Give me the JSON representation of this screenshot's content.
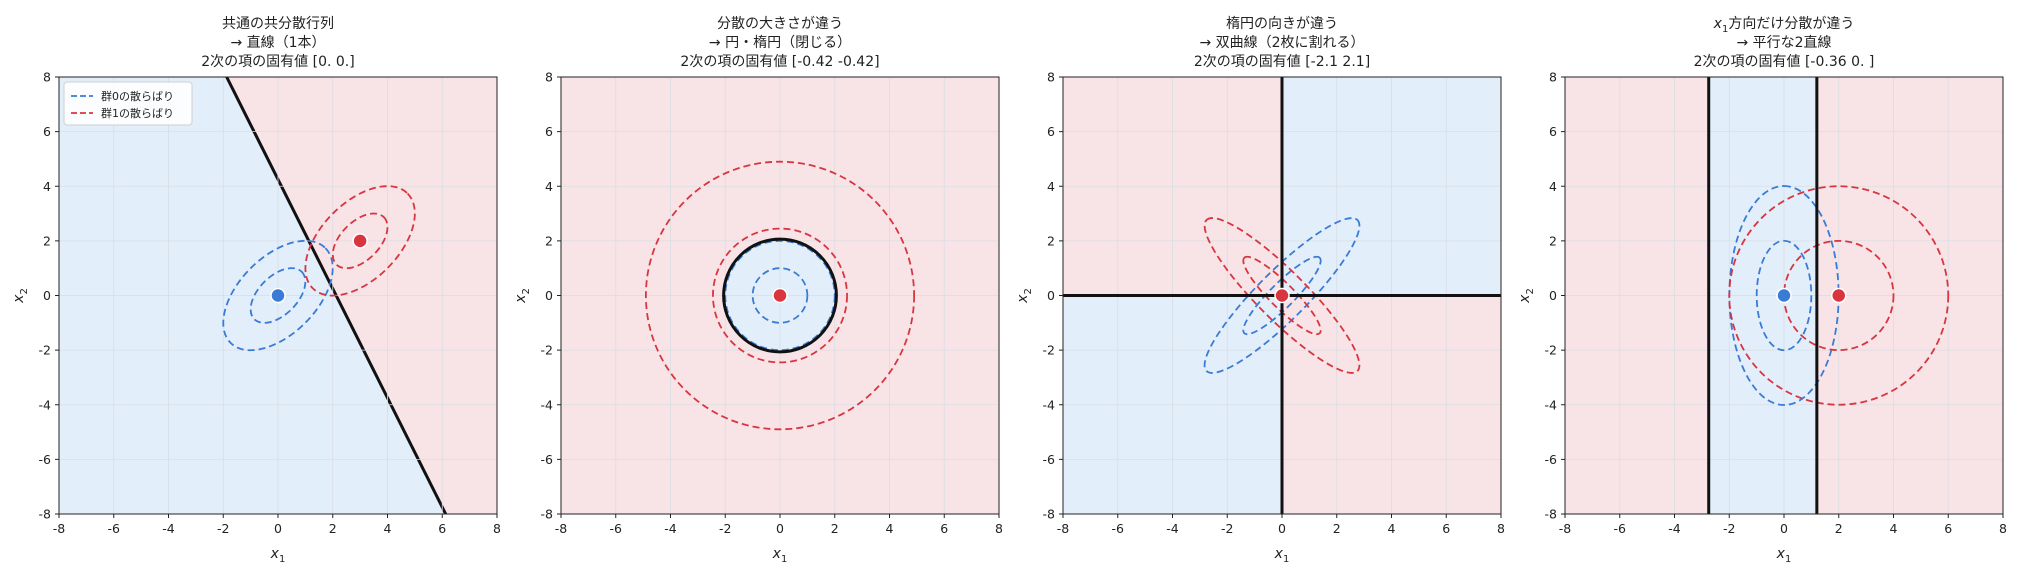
{
  "colors": {
    "group0": "#3a7bd5",
    "group1": "#d9353f",
    "region0": "#e3eefb",
    "region1": "#f8e4e7",
    "boundary": "#111111",
    "grid": "#d9dde3"
  },
  "chart_data": [
    {
      "type": "contour",
      "title_lines": [
        "共通の共分散行列",
        "→ 直線（1本）",
        "2次の項の固有値 [0. 0.]"
      ],
      "xlabel_main": "x",
      "xlabel_sub": "1",
      "ylabel_main": "x",
      "ylabel_sub": "2",
      "xlim": [
        -8,
        8
      ],
      "ylim": [
        -8,
        8
      ],
      "xticks": [
        -8,
        -6,
        -4,
        -2,
        0,
        2,
        4,
        6,
        8
      ],
      "yticks": [
        -8,
        -6,
        -4,
        -2,
        0,
        2,
        4,
        6,
        8
      ],
      "grid": true,
      "legend": {
        "position": "top-left",
        "entries": [
          "群0の散らばり",
          "群1の散らばり"
        ]
      },
      "means": [
        [
          0,
          0
        ],
        [
          3,
          2
        ]
      ],
      "covariances": [
        [
          [
            1,
            0.5
          ],
          [
            0.5,
            1
          ]
        ],
        [
          [
            1,
            0.5
          ],
          [
            0.5,
            1
          ]
        ]
      ],
      "contour_levels": [
        1,
        2
      ],
      "decision_boundary": "line: 2·x1 + x2 = 4.25",
      "eigenvalues_quadratic_term": [
        0.0,
        0.0
      ]
    },
    {
      "type": "contour",
      "title_lines": [
        "分散の大きさが違う",
        "→ 円・楕円（閉じる）",
        "2次の項の固有値 [-0.42 -0.42]"
      ],
      "xlabel_main": "x",
      "xlabel_sub": "1",
      "ylabel_main": "x",
      "ylabel_sub": "2",
      "xlim": [
        -8,
        8
      ],
      "ylim": [
        -8,
        8
      ],
      "xticks": [
        -8,
        -6,
        -4,
        -2,
        0,
        2,
        4,
        6,
        8
      ],
      "yticks": [
        -8,
        -6,
        -4,
        -2,
        0,
        2,
        4,
        6,
        8
      ],
      "grid": true,
      "means": [
        [
          0,
          0
        ],
        [
          0,
          0
        ]
      ],
      "covariances": [
        [
          [
            1,
            0
          ],
          [
            0,
            1
          ]
        ],
        [
          [
            6,
            0
          ],
          [
            0,
            6
          ]
        ]
      ],
      "contour_levels": [
        1,
        2
      ],
      "decision_boundary": "circle: radius ≈ 2.06",
      "eigenvalues_quadratic_term": [
        -0.42,
        -0.42
      ]
    },
    {
      "type": "contour",
      "title_lines": [
        "楕円の向きが違う",
        "→ 双曲線（2枚に割れる）",
        "2次の項の固有値 [-2.1  2.1]"
      ],
      "xlabel_main": "x",
      "xlabel_sub": "1",
      "ylabel_main": "x",
      "ylabel_sub": "2",
      "xlim": [
        -8,
        8
      ],
      "ylim": [
        -8,
        8
      ],
      "xticks": [
        -8,
        -6,
        -4,
        -2,
        0,
        2,
        4,
        6,
        8
      ],
      "yticks": [
        -8,
        -6,
        -4,
        -2,
        0,
        2,
        4,
        6,
        8
      ],
      "grid": true,
      "means": [
        [
          0,
          0
        ],
        [
          0,
          0
        ]
      ],
      "covariances": [
        [
          [
            2,
            1.8
          ],
          [
            1.8,
            2
          ]
        ],
        [
          [
            2,
            -1.8
          ],
          [
            -1.8,
            2
          ]
        ]
      ],
      "contour_levels": [
        1,
        2
      ],
      "decision_boundary": "two lines: x1 = 0 and x2 = 0",
      "eigenvalues_quadratic_term": [
        -2.1,
        2.1
      ]
    },
    {
      "type": "contour",
      "title_lines": [
        "x1方向だけ分散が違う",
        "→ 平行な2直線",
        "2次の項の固有値 [-0.36  0.  ]"
      ],
      "title_math": {
        "main": "x",
        "sub": "1",
        "rest": "方向だけ分散が違う"
      },
      "xlabel_main": "x",
      "xlabel_sub": "1",
      "ylabel_main": "x",
      "ylabel_sub": "2",
      "xlim": [
        -8,
        8
      ],
      "ylim": [
        -8,
        8
      ],
      "xticks": [
        -8,
        -6,
        -4,
        -2,
        0,
        2,
        4,
        6,
        8
      ],
      "yticks": [
        -8,
        -6,
        -4,
        -2,
        0,
        2,
        4,
        6,
        8
      ],
      "grid": true,
      "means": [
        [
          0,
          0
        ],
        [
          2,
          0
        ]
      ],
      "covariances": [
        [
          [
            1,
            0
          ],
          [
            0,
            4
          ]
        ],
        [
          [
            4,
            0
          ],
          [
            0,
            4
          ]
        ]
      ],
      "contour_levels": [
        1,
        2
      ],
      "decision_boundary": "two vertical lines: x1 ≈ -2.75 and x1 ≈ 1.2",
      "eigenvalues_quadratic_term": [
        -0.36,
        0.0
      ]
    }
  ]
}
